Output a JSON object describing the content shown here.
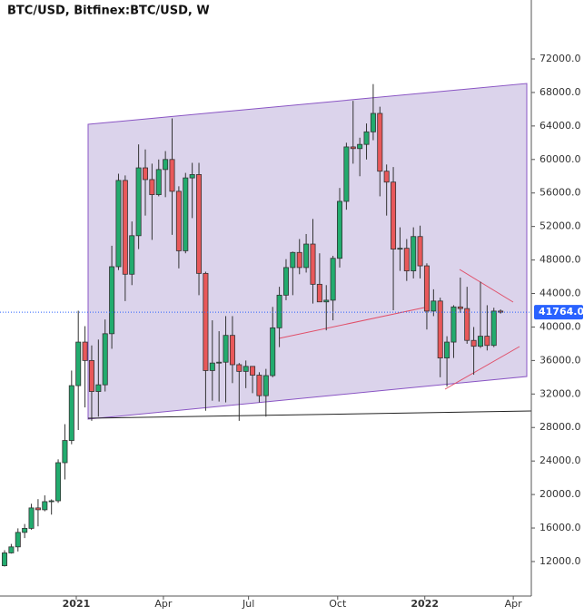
{
  "chart_data": {
    "type": "candlestick",
    "title": "BTC/USD, Bitfinex:BTC/USD, W",
    "up_color": "#22ab6e",
    "down_color": "#e8585a",
    "xlim": [
      -0.68,
      78.59
    ],
    "xticks": [
      {
        "value": 10.7,
        "label": "2021"
      },
      {
        "value": 23.7,
        "label": "Apr"
      },
      {
        "value": 36.4,
        "label": "Jul"
      },
      {
        "value": 49.7,
        "label": "Oct"
      },
      {
        "value": 62.7,
        "label": "2022"
      },
      {
        "value": 75.9,
        "label": "Apr"
      }
    ],
    "ylim": [
      7880,
      79040
    ],
    "yticks": [
      {
        "value": 12000,
        "label": "12000.0"
      },
      {
        "value": 16000,
        "label": "16000.0"
      },
      {
        "value": 20000,
        "label": "20000.0"
      },
      {
        "value": 24000,
        "label": "24000.0"
      },
      {
        "value": 28000,
        "label": "28000.0"
      },
      {
        "value": 32000,
        "label": "32000.0"
      },
      {
        "value": 36000,
        "label": "36000.0"
      },
      {
        "value": 40000,
        "label": "40000.0"
      },
      {
        "value": 44000,
        "label": "44000.0"
      },
      {
        "value": 48000,
        "label": "48000.0"
      },
      {
        "value": 52000,
        "label": "52000.0"
      },
      {
        "value": 56000,
        "label": "56000.0"
      },
      {
        "value": 60000,
        "label": "60000.0"
      },
      {
        "value": 64000,
        "label": "64000.0"
      },
      {
        "value": 68000,
        "label": "68000.0"
      },
      {
        "value": 72000,
        "label": "72000.0"
      }
    ],
    "last_price": {
      "value": 41764,
      "label": "41764.0"
    },
    "open": [
      11500,
      13030,
      13750,
      15480,
      15960,
      18400,
      18180,
      19150,
      19250,
      23800,
      26450,
      33000,
      38200,
      36000,
      32300,
      33100,
      39200,
      47200,
      57500,
      46300,
      50900,
      59000,
      57600,
      55800,
      58800,
      60000,
      56200,
      49100,
      57800,
      58200,
      46400,
      34800,
      35700,
      35800,
      39000,
      35500,
      34700,
      35300,
      34250,
      31800,
      34200,
      39900,
      43800,
      47100,
      48900,
      47100,
      49900,
      45100,
      43000,
      43200,
      48200,
      55000,
      61500,
      61300,
      61800,
      63300,
      65500,
      58600,
      57300,
      49300,
      49400,
      46700,
      50800,
      47300,
      41900,
      43100,
      36300,
      38200,
      42400,
      42200,
      38400,
      37700,
      38900,
      37800,
      41900
    ],
    "high": [
      13350,
      14100,
      15960,
      16480,
      18900,
      19450,
      19900,
      19420,
      24200,
      28400,
      34800,
      41950,
      40100,
      37800,
      38500,
      40900,
      49700,
      58300,
      58100,
      52600,
      61800,
      61200,
      59500,
      60000,
      61000,
      64900,
      56800,
      58400,
      59600,
      59600,
      46600,
      40800,
      39500,
      41300,
      41300,
      35700,
      36000,
      35300,
      34600,
      35000,
      42400,
      44800,
      48100,
      49000,
      50500,
      51100,
      52900,
      48800,
      45000,
      48500,
      56600,
      62000,
      67000,
      62600,
      64300,
      69000,
      66300,
      59400,
      59100,
      51900,
      50500,
      51900,
      52100,
      47600,
      44500,
      43500,
      38900,
      42600,
      45900,
      44800,
      40000,
      45400,
      42600,
      42300,
      42100
    ],
    "low": [
      11400,
      12950,
      13200,
      14800,
      15800,
      16200,
      18000,
      17600,
      19000,
      21800,
      26000,
      27700,
      30400,
      28800,
      29300,
      32300,
      37400,
      46800,
      43100,
      45000,
      49300,
      53300,
      50400,
      55600,
      55500,
      51000,
      47000,
      48800,
      53000,
      43800,
      30000,
      31200,
      31100,
      31000,
      33300,
      28800,
      32700,
      32100,
      31000,
      29300,
      34000,
      37600,
      43200,
      43800,
      46300,
      46500,
      42800,
      43600,
      39600,
      40800,
      47100,
      54000,
      59500,
      58000,
      60000,
      62300,
      55600,
      53300,
      42000,
      46700,
      45500,
      45800,
      45800,
      39700,
      41300,
      34000,
      32900,
      36300,
      41700,
      38000,
      34300,
      37500,
      37200,
      37600,
      41600
    ],
    "close": [
      13030,
      13750,
      15480,
      15960,
      18400,
      18180,
      19150,
      19250,
      23800,
      26450,
      33000,
      38200,
      36000,
      32300,
      33100,
      39200,
      47200,
      57500,
      46300,
      50900,
      59000,
      57600,
      55800,
      58800,
      60000,
      56200,
      49100,
      57800,
      58200,
      46400,
      34800,
      35700,
      35800,
      39000,
      35500,
      34700,
      35300,
      34250,
      31800,
      34200,
      39900,
      43800,
      47100,
      48900,
      47100,
      49900,
      45100,
      43000,
      43200,
      48200,
      55000,
      61500,
      61300,
      61800,
      63300,
      65500,
      58600,
      57300,
      49300,
      49400,
      46700,
      50800,
      47300,
      41900,
      43100,
      36300,
      38200,
      42400,
      42200,
      38400,
      37700,
      38900,
      37800,
      41900,
      41764
    ]
  }
}
